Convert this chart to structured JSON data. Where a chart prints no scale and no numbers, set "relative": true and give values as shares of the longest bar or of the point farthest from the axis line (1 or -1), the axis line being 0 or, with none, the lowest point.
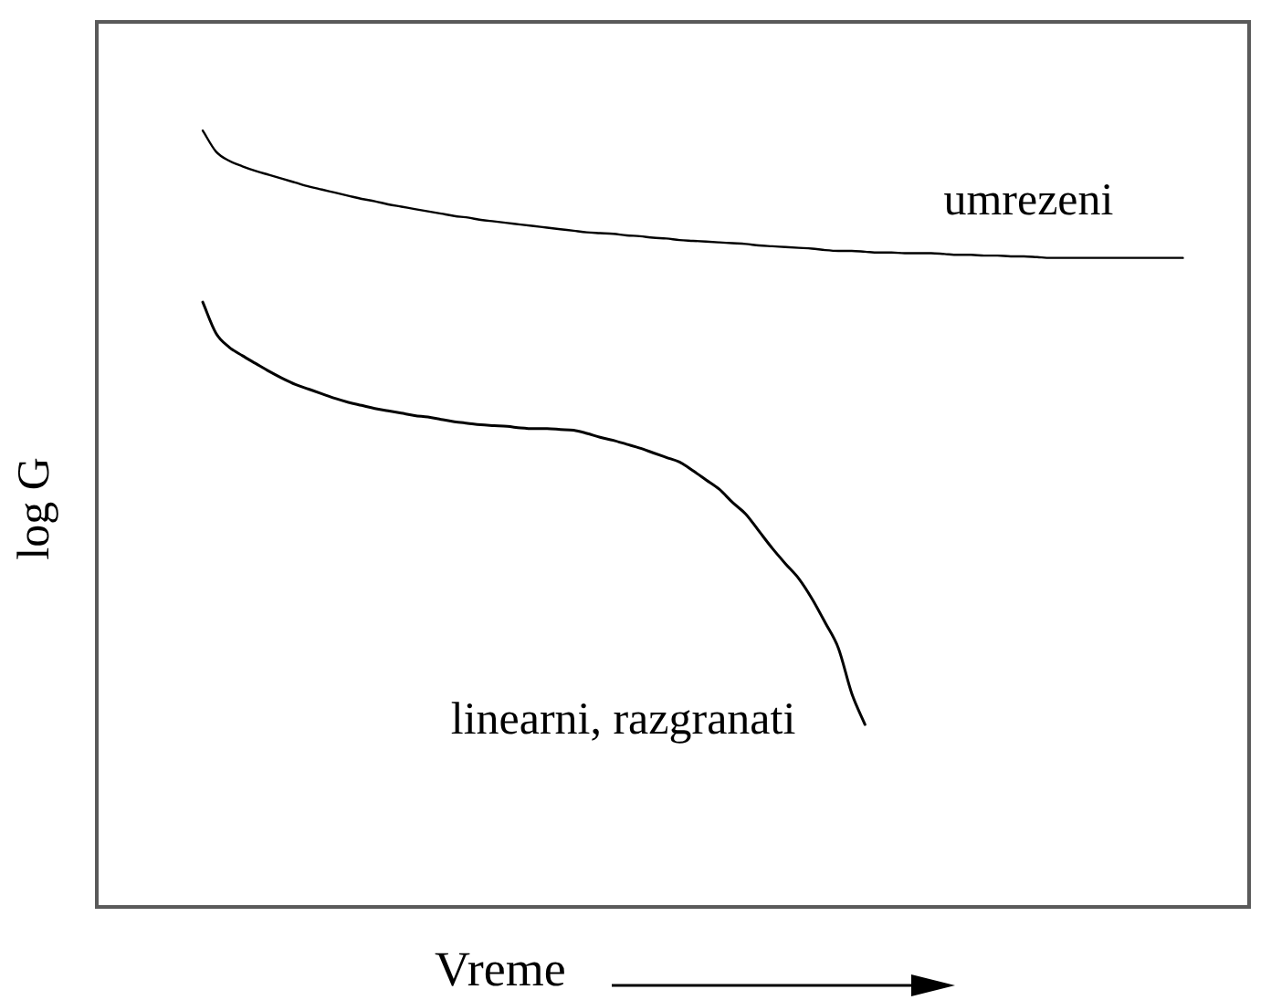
{
  "chart_data": {
    "type": "line",
    "relative": true,
    "xlabel": "Vreme",
    "ylabel": "log G",
    "categories": [
      null,
      null,
      null,
      null,
      null,
      null,
      null,
      null,
      null,
      null,
      null,
      null,
      null,
      null,
      null,
      null,
      null,
      null,
      null,
      null,
      null,
      null,
      null,
      null,
      null,
      null,
      null,
      null,
      null,
      null,
      null,
      null,
      null,
      null,
      null,
      null,
      null,
      null,
      null,
      null,
      null,
      null,
      null,
      null,
      null,
      null,
      null,
      null,
      null,
      null,
      null,
      null,
      null,
      null,
      null,
      null,
      null,
      null,
      null,
      null,
      null,
      null,
      null,
      null,
      null,
      null,
      null,
      null,
      null,
      null,
      null,
      null,
      null,
      null,
      null,
      null,
      null,
      null,
      null,
      null,
      null,
      null,
      null,
      null,
      null,
      null,
      null,
      null
    ],
    "series": [
      {
        "name": "umrezeni",
        "color": "#000000",
        "values": [
          null,
          null,
          null,
          null,
          null,
          null,
          null,
          null,
          1,
          0.973,
          0.961,
          0.954,
          0.948,
          0.943,
          0.938,
          0.933,
          0.928,
          0.924,
          0.92,
          0.916,
          0.912,
          0.909,
          0.905,
          0.902,
          0.899,
          0.896,
          0.893,
          0.89,
          0.888,
          0.885,
          0.883,
          0.881,
          0.879,
          0.877,
          0.875,
          0.873,
          0.871,
          0.869,
          0.868,
          0.867,
          0.865,
          0.864,
          0.862,
          0.861,
          0.859,
          0.858,
          0.857,
          0.856,
          0.855,
          0.854,
          0.852,
          0.851,
          0.85,
          0.849,
          0.848,
          0.846,
          0.845,
          0.845,
          0.844,
          0.843,
          0.843,
          0.842,
          0.842,
          0.842,
          0.841,
          0.84,
          0.84,
          0.839,
          0.839,
          0.838,
          0.838,
          0.837,
          0.836,
          0.836,
          0.836,
          0.836,
          0.836,
          0.836,
          0.836,
          0.836,
          0.836,
          0.836,
          0.836,
          null,
          null,
          null,
          null,
          null
        ]
      },
      {
        "name": "linearni, razgranati",
        "color": "#000000",
        "values": [
          null,
          null,
          null,
          null,
          null,
          null,
          null,
          null,
          0.779,
          0.739,
          0.721,
          0.71,
          0.7,
          0.69,
          0.681,
          0.673,
          0.667,
          0.661,
          0.655,
          0.65,
          0.646,
          0.642,
          0.639,
          0.636,
          0.633,
          0.631,
          0.628,
          0.625,
          0.623,
          0.621,
          0.62,
          0.619,
          0.617,
          0.616,
          0.616,
          0.615,
          0.614,
          0.61,
          0.605,
          0.601,
          0.596,
          0.591,
          0.585,
          0.579,
          0.573,
          0.562,
          0.55,
          0.538,
          0.521,
          0.506,
          0.484,
          0.462,
          0.442,
          0.423,
          0.397,
          0.366,
          0.333,
          0.275,
          0.235,
          null,
          null,
          null,
          null,
          null,
          null,
          null,
          null,
          null,
          null,
          null,
          null,
          null,
          null,
          null,
          null,
          null,
          null,
          null,
          null,
          null,
          null,
          null,
          null,
          null,
          null,
          null,
          null,
          null
        ]
      }
    ],
    "legend": false,
    "grid": false,
    "tick_labels": false,
    "marker": "none"
  }
}
